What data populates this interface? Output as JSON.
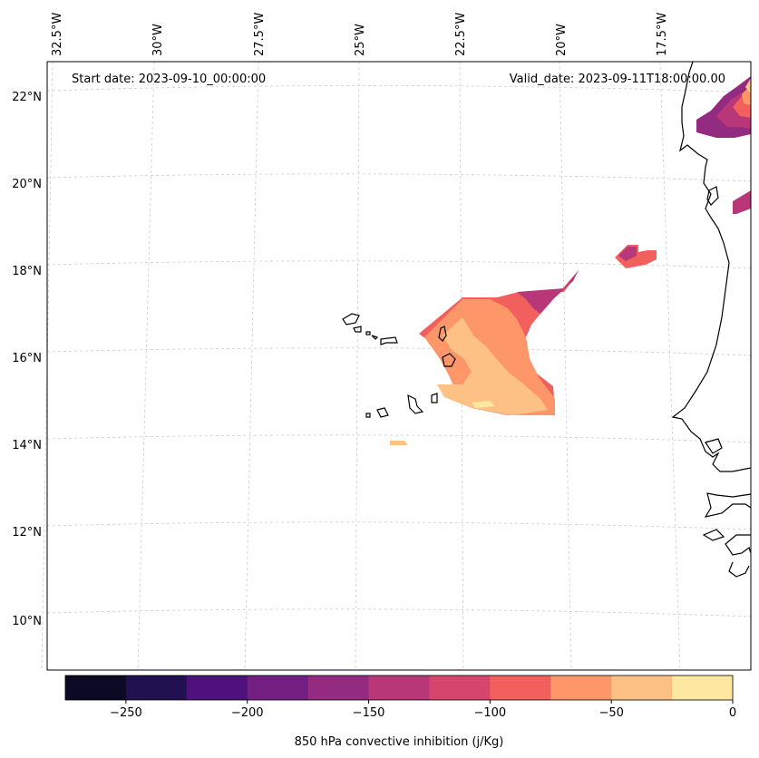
{
  "start_date_text": "Start date: 2023-09-10_00:00:00",
  "valid_date_text": "Valid_date: 2023-09-11T18:00:00.00",
  "lon_labels": [
    "32.5°W",
    "30°W",
    "27.5°W",
    "25°W",
    "22.5°W",
    "20°W",
    "17.5°W"
  ],
  "lat_labels": [
    "22°N",
    "20°N",
    "18°N",
    "16°N",
    "14°N",
    "12°N",
    "10°N"
  ],
  "colorbar": {
    "label": "850 hPa convective inhibition (j/Kg)",
    "tick_labels": [
      "−250",
      "−200",
      "−150",
      "−100",
      "−50",
      "0"
    ],
    "range": [
      -275,
      0
    ],
    "colors": [
      "#0b0924",
      "#221150",
      "#4f117b",
      "#721f81",
      "#932b80",
      "#b73779",
      "#d6456c",
      "#f1605d",
      "#fd9668",
      "#fec185",
      "#fde7a1"
    ]
  }
}
